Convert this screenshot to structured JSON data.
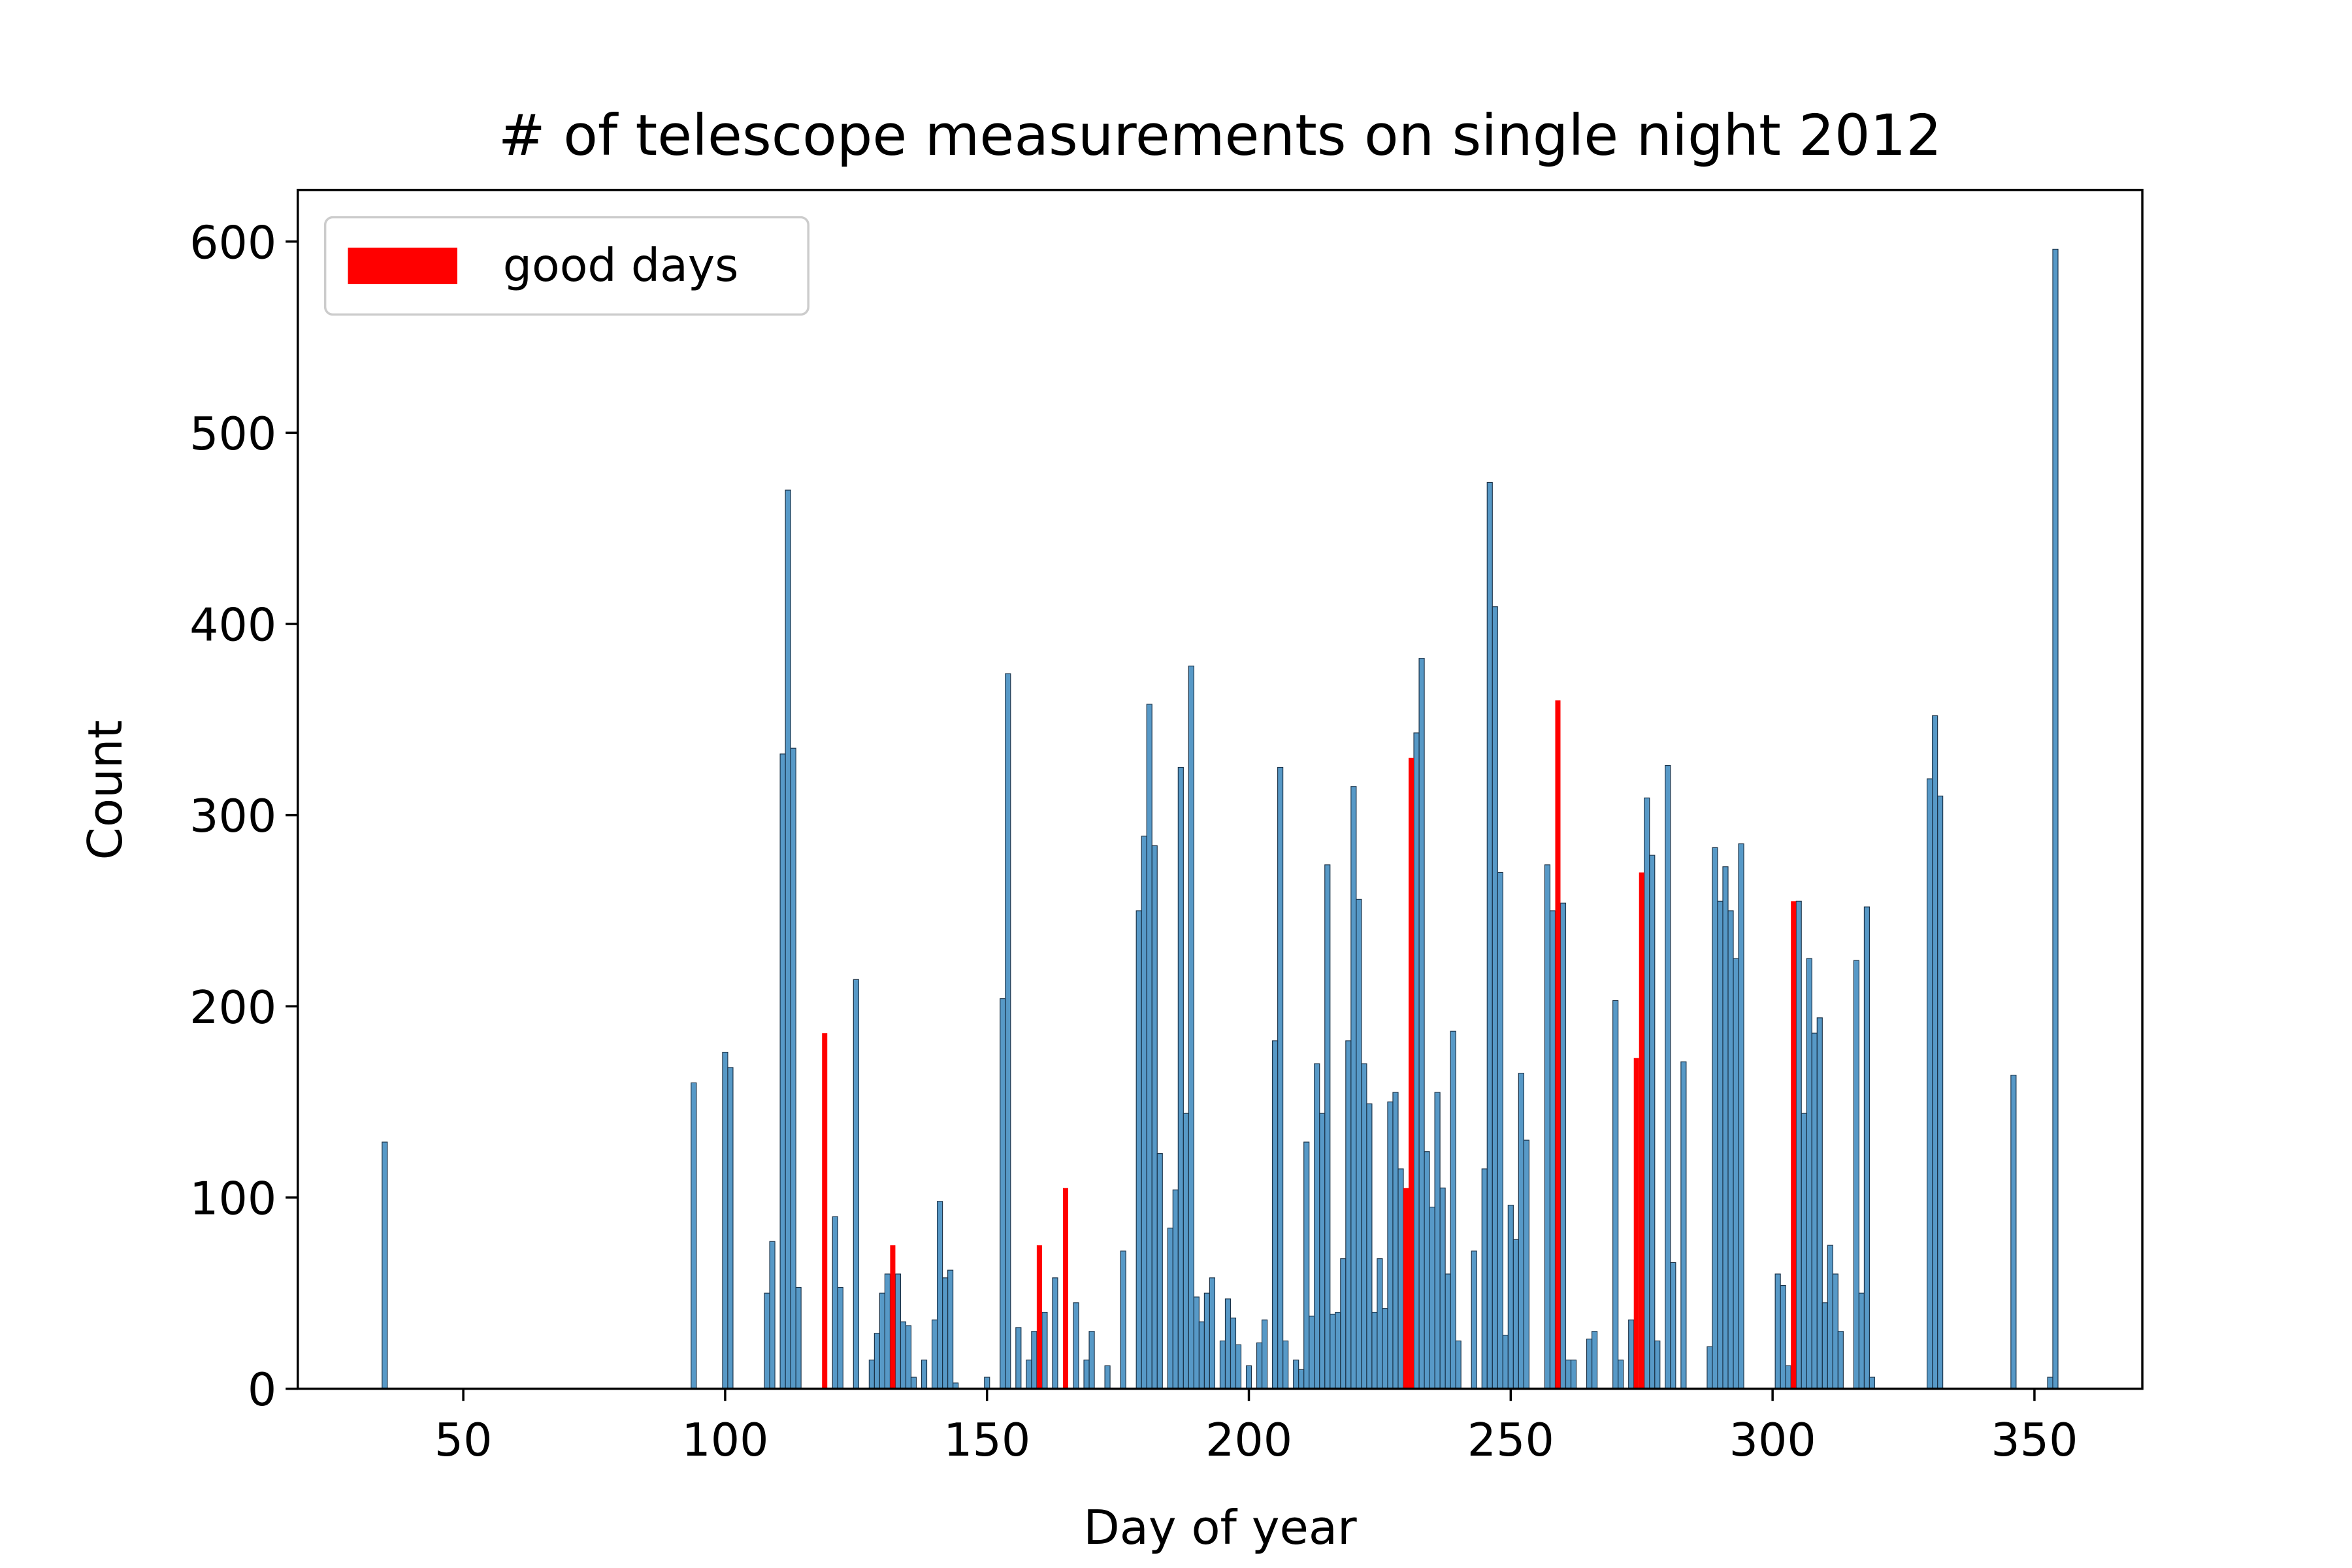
{
  "chart_data": {
    "type": "bar",
    "title": "# of telescope measurements on single night 2012",
    "xlabel": "Day of year",
    "ylabel": "Count",
    "color": "#1f77b4",
    "x": [
      35,
      94,
      100,
      101,
      108,
      109,
      111,
      112,
      113,
      114,
      121,
      122,
      125,
      128,
      129,
      130,
      131,
      133,
      134,
      135,
      136,
      138,
      140,
      141,
      142,
      143,
      144,
      150,
      153,
      154,
      156,
      158,
      159,
      161,
      163,
      167,
      169,
      170,
      173,
      176,
      179,
      180,
      181,
      182,
      183,
      185,
      186,
      187,
      188,
      189,
      190,
      191,
      192,
      193,
      195,
      196,
      197,
      198,
      200,
      202,
      203,
      205,
      206,
      207,
      209,
      210,
      211,
      212,
      213,
      214,
      215,
      216,
      217,
      218,
      219,
      220,
      221,
      222,
      223,
      224,
      225,
      226,
      227,
      228,
      229,
      232,
      233,
      234,
      235,
      236,
      237,
      238,
      239,
      240,
      243,
      245,
      246,
      247,
      248,
      249,
      250,
      251,
      252,
      253,
      257,
      258,
      260,
      261,
      262,
      265,
      266,
      270,
      271,
      273,
      276,
      277,
      278,
      280,
      281,
      283,
      288,
      289,
      290,
      291,
      292,
      293,
      294,
      301,
      302,
      303,
      305,
      306,
      307,
      308,
      309,
      310,
      311,
      312,
      313,
      316,
      317,
      318,
      319,
      330,
      331,
      332,
      346,
      353,
      354
    ],
    "values": [
      129,
      160,
      176,
      168,
      50,
      77,
      332,
      470,
      335,
      53,
      90,
      53,
      214,
      15,
      29,
      50,
      60,
      60,
      35,
      33,
      6,
      15,
      36,
      98,
      58,
      62,
      3,
      6,
      204,
      374,
      32,
      15,
      30,
      40,
      58,
      45,
      15,
      30,
      12,
      72,
      250,
      289,
      358,
      284,
      123,
      84,
      104,
      325,
      144,
      378,
      48,
      35,
      50,
      58,
      25,
      47,
      37,
      23,
      12,
      24,
      36,
      182,
      325,
      25,
      15,
      10,
      129,
      38,
      170,
      144,
      274,
      39,
      40,
      68,
      182,
      315,
      256,
      170,
      149,
      40,
      68,
      42,
      150,
      155,
      115,
      343,
      382,
      124,
      95,
      155,
      105,
      60,
      187,
      25,
      72,
      115,
      474,
      409,
      270,
      28,
      96,
      78,
      165,
      130,
      274,
      250,
      254,
      15,
      15,
      26,
      30,
      203,
      15,
      36,
      309,
      279,
      25,
      326,
      66,
      171,
      22,
      283,
      255,
      273,
      250,
      225,
      285,
      60,
      54,
      12,
      255,
      144,
      225,
      186,
      194,
      45,
      75,
      60,
      30,
      224,
      50,
      252,
      6,
      319,
      352,
      310,
      164,
      6,
      596
    ],
    "series": [
      {
        "name": "good days",
        "color": "#ff0000",
        "x": [
          119,
          132,
          160,
          165,
          230,
          231,
          259,
          274,
          275,
          304
        ],
        "values": [
          186,
          75,
          75,
          105,
          105,
          330,
          360,
          173,
          270,
          255
        ]
      }
    ],
    "xlim": [
      18.4,
      370.6
    ],
    "ylim": [
      0,
      627
    ],
    "xticks": [
      50,
      100,
      150,
      200,
      250,
      300,
      350
    ],
    "yticks": [
      0,
      100,
      200,
      300,
      400,
      500,
      600
    ],
    "legend": "upper left"
  }
}
